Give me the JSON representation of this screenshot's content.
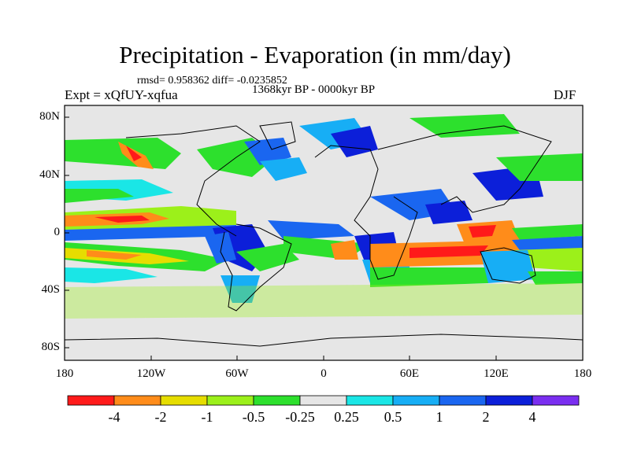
{
  "title": "Precipitation - Evaporation (in mm/day)",
  "stats": "rmsd= 0.958362  diff= -0.0235852",
  "experiment": "Expt = xQfUY-xqfua",
  "period": "1368kyr BP - 0000kyr BP",
  "season": "DJF",
  "axes": {
    "y_ticks": [
      "80N",
      "40N",
      "0",
      "40S",
      "80S"
    ],
    "x_ticks": [
      "180",
      "120W",
      "60W",
      "0",
      "60E",
      "120E",
      "180"
    ]
  },
  "colorbar": {
    "colors": [
      "#ff1a1a",
      "#ff8c1a",
      "#e6dd00",
      "#9cf01a",
      "#2de02d",
      "#e6e6e6",
      "#1ae6e6",
      "#17aef5",
      "#1a66f0",
      "#0c1fd9",
      "#7a2ef0"
    ],
    "labels": [
      "-4",
      "-2",
      "-1",
      "-0.5",
      "-0.25",
      "0.25",
      "0.5",
      "1",
      "2",
      "4"
    ]
  },
  "colors": {
    "no_data_gray": "#e6e6e6",
    "coastline": "#000000"
  }
}
